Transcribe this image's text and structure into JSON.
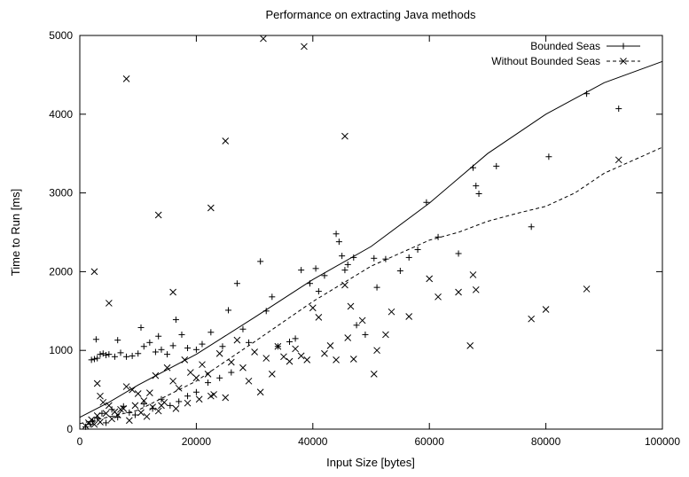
{
  "chart_data": {
    "type": "scatter",
    "title": "Performance on extracting Java methods",
    "xlabel": "Input Size [bytes]",
    "ylabel": "Time to Run [ms]",
    "xlim": [
      0,
      100000
    ],
    "ylim": [
      0,
      5000
    ],
    "x_ticks": [
      0,
      20000,
      40000,
      60000,
      80000,
      100000
    ],
    "y_ticks": [
      0,
      1000,
      2000,
      3000,
      4000,
      5000
    ],
    "x_tick_labels": [
      "0",
      "20000",
      "40000",
      "60000",
      "80000",
      "100000"
    ],
    "y_tick_labels": [
      "0",
      "1000",
      "2000",
      "3000",
      "4000",
      "5000"
    ],
    "grid": false,
    "legend_position": "top-right",
    "series": [
      {
        "name": "Bounded Seas",
        "marker": "plus",
        "line_style": "solid",
        "points": [
          [
            2000,
            880
          ],
          [
            2500,
            890
          ],
          [
            2800,
            1140
          ],
          [
            3000,
            900
          ],
          [
            3500,
            950
          ],
          [
            4000,
            960
          ],
          [
            4500,
            940
          ],
          [
            5000,
            950
          ],
          [
            6000,
            920
          ],
          [
            6500,
            1130
          ],
          [
            7000,
            970
          ],
          [
            8000,
            920
          ],
          [
            9000,
            930
          ],
          [
            10000,
            960
          ],
          [
            10500,
            1290
          ],
          [
            11000,
            1050
          ],
          [
            12000,
            1100
          ],
          [
            13000,
            980
          ],
          [
            13500,
            1180
          ],
          [
            14000,
            1010
          ],
          [
            15000,
            950
          ],
          [
            16000,
            1060
          ],
          [
            16500,
            1390
          ],
          [
            17500,
            1200
          ],
          [
            18500,
            1030
          ],
          [
            20000,
            1010
          ],
          [
            21000,
            1080
          ],
          [
            22500,
            1230
          ],
          [
            24500,
            1050
          ],
          [
            25500,
            1510
          ],
          [
            27000,
            1850
          ],
          [
            28000,
            1270
          ],
          [
            29000,
            1100
          ],
          [
            31000,
            2130
          ],
          [
            32000,
            1500
          ],
          [
            33000,
            1680
          ],
          [
            34000,
            1050
          ],
          [
            36000,
            1110
          ],
          [
            37000,
            1150
          ],
          [
            38000,
            2020
          ],
          [
            39500,
            1850
          ],
          [
            40500,
            2040
          ],
          [
            41000,
            1750
          ],
          [
            42000,
            1950
          ],
          [
            44000,
            2480
          ],
          [
            44500,
            2380
          ],
          [
            45000,
            2200
          ],
          [
            45500,
            2020
          ],
          [
            46000,
            2090
          ],
          [
            47000,
            2180
          ],
          [
            47500,
            1320
          ],
          [
            49000,
            1200
          ],
          [
            50500,
            2170
          ],
          [
            51000,
            1800
          ],
          [
            52500,
            2160
          ],
          [
            55000,
            2010
          ],
          [
            56500,
            2180
          ],
          [
            58000,
            2280
          ],
          [
            59500,
            2880
          ],
          [
            61500,
            2440
          ],
          [
            65000,
            2230
          ],
          [
            67500,
            3320
          ],
          [
            68000,
            3090
          ],
          [
            68500,
            2990
          ],
          [
            71500,
            3340
          ],
          [
            77500,
            2570
          ],
          [
            80500,
            3460
          ],
          [
            87000,
            4260
          ],
          [
            92500,
            4070
          ],
          [
            1000,
            30
          ],
          [
            1800,
            60
          ],
          [
            2200,
            100
          ],
          [
            3000,
            140
          ],
          [
            3800,
            200
          ],
          [
            4500,
            80
          ],
          [
            5500,
            250
          ],
          [
            6500,
            150
          ],
          [
            7500,
            290
          ],
          [
            8500,
            210
          ],
          [
            9500,
            180
          ],
          [
            11000,
            320
          ],
          [
            12500,
            260
          ],
          [
            14000,
            380
          ],
          [
            15500,
            300
          ],
          [
            17000,
            350
          ],
          [
            18500,
            420
          ],
          [
            20000,
            470
          ],
          [
            22000,
            590
          ],
          [
            24000,
            650
          ],
          [
            26000,
            720
          ]
        ],
        "fit_curve": [
          [
            0,
            150
          ],
          [
            5000,
            340
          ],
          [
            10000,
            560
          ],
          [
            20000,
            950
          ],
          [
            30000,
            1420
          ],
          [
            40000,
            1900
          ],
          [
            50000,
            2320
          ],
          [
            60000,
            2870
          ],
          [
            70000,
            3500
          ],
          [
            80000,
            4000
          ],
          [
            90000,
            4400
          ],
          [
            100000,
            4670
          ]
        ]
      },
      {
        "name": "Without Bounded Seas",
        "marker": "cross",
        "line_style": "dashed",
        "points": [
          [
            2500,
            2000
          ],
          [
            8000,
            4450
          ],
          [
            5000,
            1600
          ],
          [
            13500,
            2720
          ],
          [
            16000,
            1740
          ],
          [
            22500,
            2810
          ],
          [
            25000,
            3660
          ],
          [
            31500,
            4960
          ],
          [
            38500,
            4860
          ],
          [
            45500,
            3720
          ],
          [
            45500,
            1830
          ],
          [
            46500,
            1560
          ],
          [
            48500,
            1380
          ],
          [
            50500,
            700
          ],
          [
            51000,
            1000
          ],
          [
            52500,
            1200
          ],
          [
            53500,
            1490
          ],
          [
            56500,
            1430
          ],
          [
            60000,
            1910
          ],
          [
            61500,
            1680
          ],
          [
            65000,
            1740
          ],
          [
            67000,
            1060
          ],
          [
            67500,
            1960
          ],
          [
            68000,
            1770
          ],
          [
            77500,
            1400
          ],
          [
            80000,
            1520
          ],
          [
            87000,
            1780
          ],
          [
            92500,
            3420
          ],
          [
            3000,
            580
          ],
          [
            3500,
            420
          ],
          [
            4000,
            340
          ],
          [
            5000,
            300
          ],
          [
            6000,
            220
          ],
          [
            7000,
            250
          ],
          [
            8000,
            540
          ],
          [
            9000,
            500
          ],
          [
            10000,
            450
          ],
          [
            11000,
            360
          ],
          [
            12000,
            460
          ],
          [
            13000,
            680
          ],
          [
            14000,
            300
          ],
          [
            15000,
            780
          ],
          [
            16000,
            610
          ],
          [
            17000,
            520
          ],
          [
            18000,
            880
          ],
          [
            19000,
            720
          ],
          [
            20000,
            650
          ],
          [
            21000,
            820
          ],
          [
            22000,
            700
          ],
          [
            23000,
            440
          ],
          [
            24000,
            960
          ],
          [
            25000,
            400
          ],
          [
            26000,
            850
          ],
          [
            27000,
            1130
          ],
          [
            28000,
            780
          ],
          [
            29000,
            610
          ],
          [
            30000,
            980
          ],
          [
            31000,
            470
          ],
          [
            32000,
            900
          ],
          [
            33000,
            700
          ],
          [
            34000,
            1050
          ],
          [
            35000,
            920
          ],
          [
            36000,
            860
          ],
          [
            37000,
            1020
          ],
          [
            38000,
            930
          ],
          [
            39000,
            880
          ],
          [
            40000,
            1540
          ],
          [
            41000,
            1420
          ],
          [
            42000,
            960
          ],
          [
            43000,
            1060
          ],
          [
            44000,
            880
          ],
          [
            46000,
            1160
          ],
          [
            47000,
            890
          ],
          [
            1000,
            40
          ],
          [
            1500,
            80
          ],
          [
            2000,
            120
          ],
          [
            2500,
            60
          ],
          [
            3000,
            170
          ],
          [
            3500,
            90
          ],
          [
            4500,
            200
          ],
          [
            5500,
            130
          ],
          [
            6500,
            180
          ],
          [
            7500,
            260
          ],
          [
            8500,
            110
          ],
          [
            9500,
            300
          ],
          [
            10500,
            210
          ],
          [
            11500,
            160
          ],
          [
            12500,
            280
          ],
          [
            13500,
            230
          ],
          [
            14500,
            340
          ],
          [
            16500,
            260
          ],
          [
            18500,
            330
          ],
          [
            20500,
            380
          ],
          [
            22500,
            420
          ]
        ],
        "fit_curve": [
          [
            0,
            70
          ],
          [
            10000,
            240
          ],
          [
            20000,
            610
          ],
          [
            30000,
            1110
          ],
          [
            40000,
            1620
          ],
          [
            50000,
            2070
          ],
          [
            60000,
            2400
          ],
          [
            65000,
            2500
          ],
          [
            70000,
            2640
          ],
          [
            75000,
            2740
          ],
          [
            80000,
            2830
          ],
          [
            85000,
            3000
          ],
          [
            90000,
            3250
          ],
          [
            100000,
            3580
          ]
        ]
      }
    ]
  }
}
